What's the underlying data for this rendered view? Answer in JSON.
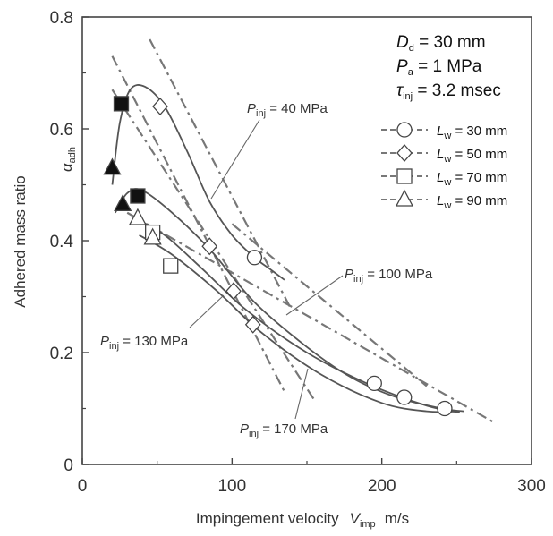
{
  "chart_data": {
    "type": "scatter",
    "xlabel": "Impingement velocity",
    "xlabel_symbol": "V",
    "xlabel_symbol_sub": "imp",
    "xlabel_unit": "m/s",
    "ylabel": "Adhered mass ratio",
    "ylabel_symbol": "α",
    "ylabel_symbol_sub": "adh",
    "xlim": [
      0,
      300
    ],
    "ylim": [
      0,
      0.8
    ],
    "xticks": [
      "0",
      "100",
      "200",
      "300"
    ],
    "yticks": [
      "0",
      "0.2",
      "0.4",
      "0.6",
      "0.8"
    ],
    "grid": false,
    "conditions": [
      {
        "sym": "D",
        "sub": "d",
        "text": " = 30 mm"
      },
      {
        "sym": "P",
        "sub": "a",
        "text": " = 1 MPa"
      },
      {
        "sym": "τ",
        "sub": "inj",
        "text": " = 3.2 msec"
      }
    ],
    "legend_position": "right",
    "series": [
      {
        "name": "L_w = 30 mm",
        "sym": "L",
        "sub": "w",
        "text": " = 30 mm",
        "marker": "circle",
        "points": [
          [
            115,
            0.37
          ],
          [
            195,
            0.145
          ],
          [
            215,
            0.12
          ],
          [
            242,
            0.1
          ]
        ]
      },
      {
        "name": "L_w = 50 mm",
        "sym": "L",
        "sub": "w",
        "text": " = 50 mm",
        "marker": "diamond",
        "points": [
          [
            52,
            0.64
          ],
          [
            85,
            0.39
          ],
          [
            101,
            0.31
          ],
          [
            114,
            0.25
          ]
        ]
      },
      {
        "name": "L_w = 70 mm",
        "sym": "L",
        "sub": "w",
        "text": " = 70 mm",
        "marker": "square",
        "points": [
          [
            26,
            0.645
          ],
          [
            37,
            0.48
          ],
          [
            47,
            0.415
          ],
          [
            59,
            0.355
          ]
        ],
        "filled": [
          true,
          true,
          false,
          false
        ]
      },
      {
        "name": "L_w = 90 mm",
        "sym": "L",
        "sub": "w",
        "text": " = 90 mm",
        "marker": "triangle",
        "points": [
          [
            20,
            0.53
          ],
          [
            27,
            0.465
          ],
          [
            37,
            0.44
          ],
          [
            47,
            0.405
          ]
        ],
        "filled": [
          true,
          true,
          false,
          false
        ]
      }
    ],
    "curves": [
      {
        "label": "P_inj = 40 MPa",
        "points": [
          [
            20,
            0.5
          ],
          [
            25,
            0.61
          ],
          [
            32,
            0.67
          ],
          [
            42,
            0.675
          ],
          [
            55,
            0.64
          ],
          [
            70,
            0.56
          ],
          [
            85,
            0.47
          ],
          [
            100,
            0.41
          ],
          [
            115,
            0.37
          ],
          [
            125,
            0.35
          ],
          [
            135,
            0.33
          ]
        ]
      },
      {
        "label": "P_inj = 100 MPa",
        "points": [
          [
            22,
            0.45
          ],
          [
            30,
            0.485
          ],
          [
            40,
            0.49
          ],
          [
            60,
            0.45
          ],
          [
            85,
            0.385
          ],
          [
            115,
            0.29
          ],
          [
            150,
            0.21
          ],
          [
            180,
            0.155
          ],
          [
            210,
            0.12
          ],
          [
            240,
            0.1
          ],
          [
            255,
            0.095
          ]
        ]
      },
      {
        "label": "P_inj = 130 MPa",
        "points": [
          [
            35,
            0.44
          ],
          [
            55,
            0.41
          ],
          [
            80,
            0.35
          ],
          [
            110,
            0.275
          ],
          [
            150,
            0.2
          ],
          [
            190,
            0.145
          ],
          [
            230,
            0.105
          ],
          [
            252,
            0.093
          ]
        ]
      },
      {
        "label": "P_inj = 170 MPa",
        "points": [
          [
            38,
            0.41
          ],
          [
            60,
            0.375
          ],
          [
            90,
            0.31
          ],
          [
            120,
            0.235
          ],
          [
            160,
            0.16
          ],
          [
            200,
            0.11
          ],
          [
            230,
            0.095
          ],
          [
            252,
            0.095
          ]
        ]
      }
    ],
    "fit_lines": [
      {
        "points": [
          [
            20,
            0.73
          ],
          [
            135,
            0.13
          ]
        ]
      },
      {
        "points": [
          [
            45,
            0.76
          ],
          [
            140,
            0.275
          ]
        ]
      },
      {
        "points": [
          [
            20,
            0.67
          ],
          [
            155,
            0.115
          ]
        ]
      },
      {
        "points": [
          [
            30,
            0.45
          ],
          [
            275,
            0.075
          ]
        ]
      },
      {
        "points": [
          [
            100,
            0.43
          ],
          [
            230,
            0.14
          ]
        ]
      }
    ],
    "annotations": [
      {
        "sym": "P",
        "sub": "inj",
        "text": " = 40 MPa"
      },
      {
        "sym": "P",
        "sub": "inj",
        "text": " = 100 MPa"
      },
      {
        "sym": "P",
        "sub": "inj",
        "text": " = 130 MPa"
      },
      {
        "sym": "P",
        "sub": "inj",
        "text": " = 170 MPa"
      }
    ]
  }
}
